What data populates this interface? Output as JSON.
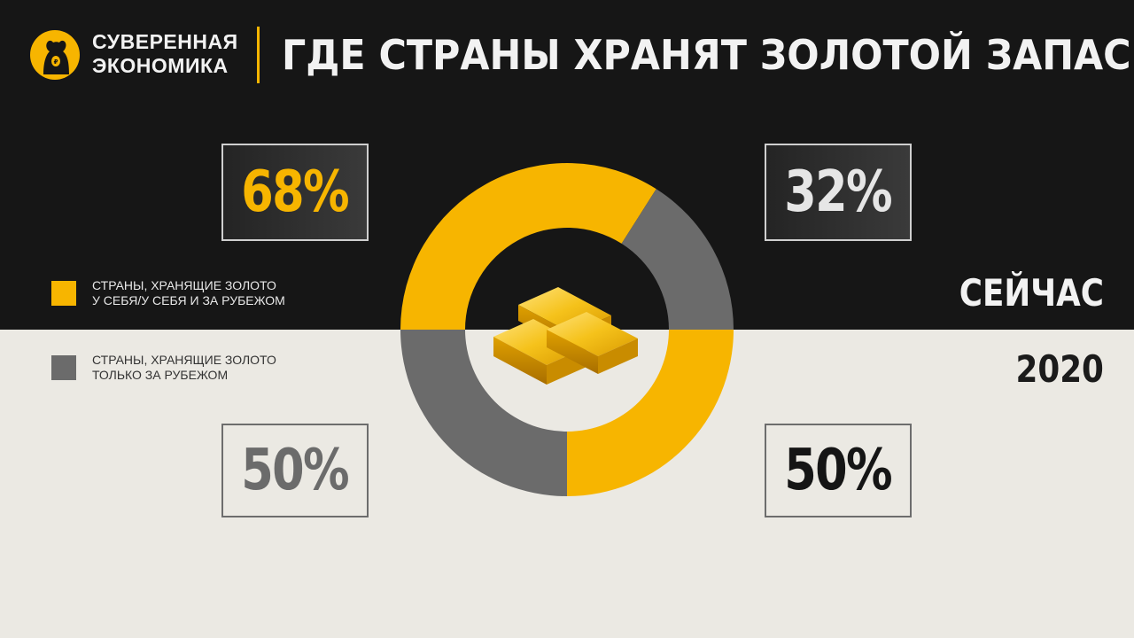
{
  "header": {
    "brand_line1": "СУВЕРЕННАЯ",
    "brand_line2": "ЭКОНОМИКА",
    "title": "ГДЕ СТРАНЫ ХРАНЯТ ЗОЛОТОЙ ЗАПАС"
  },
  "legend": [
    {
      "label": "СТРАНЫ, ХРАНЯЩИЕ ЗОЛОТО\nУ СЕБЯ/У СЕБЯ И ЗА РУБЕЖОМ",
      "color": "#f7b500"
    },
    {
      "label": "СТРАНЫ, ХРАНЯЩИЕ ЗОЛОТО\nТОЛЬКО ЗА РУБЕЖОМ",
      "color": "#6b6b6b"
    }
  ],
  "periods": {
    "now": "СЕЙЧАС",
    "year": "2020"
  },
  "values": {
    "now_home": "68%",
    "now_abroad": "32%",
    "y2020_abroad": "50%",
    "y2020_home": "50%"
  },
  "colors": {
    "gold": "#f7b500",
    "grey": "#6b6b6b",
    "dark_bg": "#161616",
    "light_bg": "#ebe9e3"
  },
  "icons": {
    "logo": "bear-logo-icon",
    "center": "gold-bars-icon"
  },
  "chart_data": [
    {
      "type": "pie",
      "period": "СЕЙЧАС",
      "categories": [
        "СТРАНЫ, ХРАНЯЩИЕ ЗОЛОТО У СЕБЯ/У СЕБЯ И ЗА РУБЕЖОМ",
        "СТРАНЫ, ХРАНЯЩИЕ ЗОЛОТО ТОЛЬКО ЗА РУБЕЖОМ"
      ],
      "values": [
        68,
        32
      ],
      "colors": [
        "#f7b500",
        "#6b6b6b"
      ],
      "shape": "semi-donut (top half)"
    },
    {
      "type": "pie",
      "period": "2020",
      "categories": [
        "СТРАНЫ, ХРАНЯЩИЕ ЗОЛОТО ТОЛЬКО ЗА РУБЕЖОМ",
        "СТРАНЫ, ХРАНЯЩИЕ ЗОЛОТО У СЕБЯ/У СЕБЯ И ЗА РУБЕЖОМ"
      ],
      "values": [
        50,
        50
      ],
      "colors": [
        "#6b6b6b",
        "#f7b500"
      ],
      "shape": "semi-donut (bottom half)"
    }
  ]
}
